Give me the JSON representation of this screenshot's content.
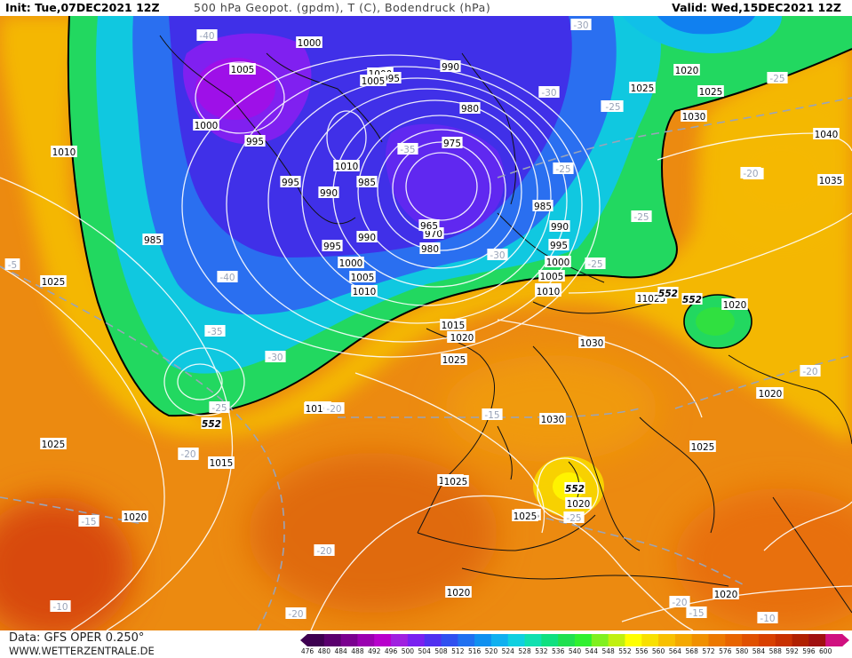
{
  "header": {
    "init": "Init: Tue,07DEC2021 12Z",
    "title": "500 hPa Geopot. (gpdm), T (C), Bodendruck (hPa)",
    "valid": "Valid: Wed,15DEC2021 12Z"
  },
  "footer": {
    "data_source": "Data: GFS OPER 0.250°",
    "website": "WWW.WETTERZENTRALE.DE"
  },
  "colorbar": {
    "labels": [
      "476",
      "480",
      "484",
      "488",
      "492",
      "496",
      "500",
      "504",
      "508",
      "512",
      "516",
      "520",
      "524",
      "528",
      "532",
      "536",
      "540",
      "544",
      "548",
      "552",
      "556",
      "560",
      "564",
      "568",
      "572",
      "576",
      "580",
      "584",
      "588",
      "592",
      "596",
      "600"
    ],
    "colors": [
      "#3d0050",
      "#5a006e",
      "#7a008f",
      "#9a00b0",
      "#b800cc",
      "#a020e0",
      "#7a20f0",
      "#5030f0",
      "#3050f0",
      "#2070f0",
      "#1090f0",
      "#10b0f0",
      "#10d0e0",
      "#10e0b0",
      "#10e080",
      "#20e050",
      "#30f030",
      "#80f020",
      "#c0f010",
      "#ffff00",
      "#f8e000",
      "#f8c000",
      "#f4a800",
      "#f09000",
      "#ec7800",
      "#e86400",
      "#e05000",
      "#d84000",
      "#c83000",
      "#b02000",
      "#a01010",
      "#d01080"
    ]
  },
  "legend_keys": {
    "shaded": "500 hPa Geopot. (gpdm)",
    "dashed_gray": "T (C)",
    "white_lines": "Bodendruck (hPa)"
  },
  "map_labels": {
    "pressure": [
      "1000",
      "1005",
      "1000",
      "995",
      "1000",
      "1005",
      "995",
      "990",
      "980",
      "975",
      "970",
      "965",
      "980",
      "985",
      "990",
      "995",
      "1000",
      "1005",
      "1010",
      "1010",
      "995",
      "990",
      "985",
      "1010",
      "985",
      "990",
      "995",
      "1000",
      "1005",
      "1030",
      "1010",
      "1025",
      "1020",
      "1025",
      "1030",
      "1025",
      "1035",
      "1040",
      "1030",
      "1025",
      "1010",
      "1015",
      "1020",
      "1025",
      "1030",
      "1025",
      "1020",
      "1020",
      "1025",
      "1030",
      "1025",
      "1010",
      "1015",
      "1025",
      "1020",
      "1020",
      "1025",
      "1020",
      "1020",
      "1025",
      "1015",
      "1010",
      "1010",
      "1020",
      "1020",
      "1025"
    ],
    "temperature": [
      "-40",
      "-30",
      "-35",
      "-30",
      "-25",
      "-25",
      "-30",
      "-25",
      "-35",
      "-40",
      "-30",
      "-25",
      "-20",
      "-25",
      "-15",
      "-20",
      "-20",
      "-25",
      "-20",
      "-15",
      "-20",
      "-10",
      "-20",
      "-15",
      "-10",
      "-20",
      "-20",
      "-35",
      "-25",
      "-20",
      "-30",
      "-5"
    ],
    "geopotential": [
      "552",
      "552",
      "552",
      "552"
    ]
  }
}
